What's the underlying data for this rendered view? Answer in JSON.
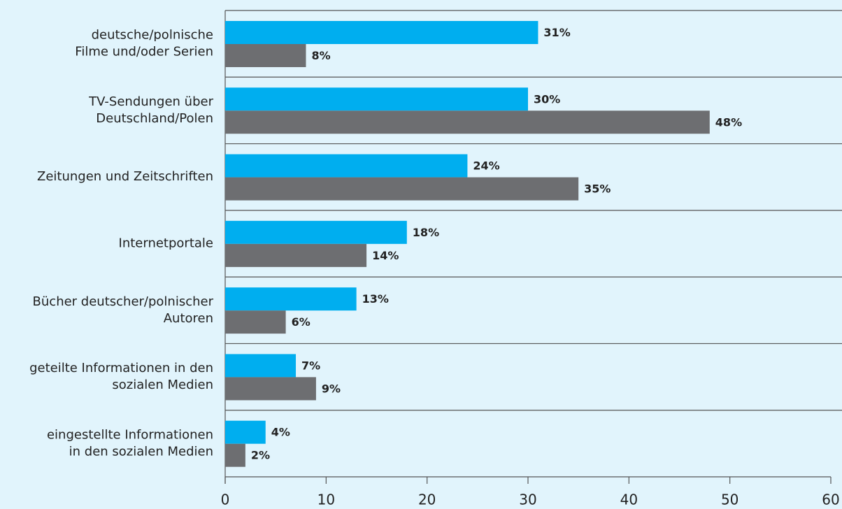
{
  "chart_data": {
    "type": "bar",
    "orientation": "horizontal",
    "categories": [
      [
        "deutsche/polnische",
        "Filme und/oder Serien"
      ],
      [
        "TV-Sendungen über",
        "Deutschland/Polen"
      ],
      [
        "Zeitungen und Zeitschriften"
      ],
      [
        "Internetportale"
      ],
      [
        "Bücher deutscher/polnischer",
        "Autoren"
      ],
      [
        "geteilte Informationen in den",
        "sozialen Medien"
      ],
      [
        "eingestellte Informationen",
        "in den sozialen Medien"
      ]
    ],
    "series": [
      {
        "color": "#00aeef",
        "values": [
          31,
          30,
          24,
          18,
          13,
          7,
          4
        ],
        "value_labels": [
          "31%",
          "30%",
          "24%",
          "18%",
          "13%",
          "7%",
          "4%"
        ]
      },
      {
        "color": "#6d6e71",
        "values": [
          8,
          48,
          35,
          14,
          6,
          9,
          2
        ],
        "value_labels": [
          "8%",
          "48%",
          "35%",
          "14%",
          "6%",
          "9%",
          "2%"
        ]
      }
    ],
    "xlim": [
      0,
      60
    ],
    "xticks": [
      0,
      10,
      20,
      30,
      40,
      50,
      60
    ]
  }
}
